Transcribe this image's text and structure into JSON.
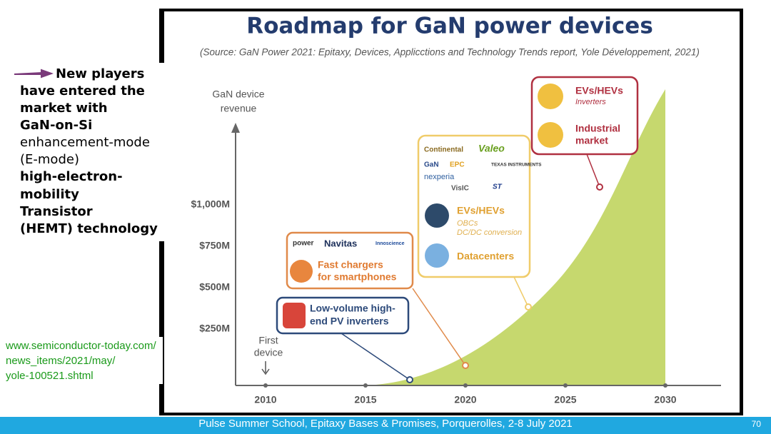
{
  "slide": {
    "title": "Roadmap for GaN power devices",
    "source": "(Source: GaN Power 2021: Epitaxy, Devices, Applicctions and Technology Trends report, Yole Développement, 2021)",
    "side_text": [
      "New players",
      "have entered the",
      "market with",
      "GaN-on-Si",
      "enhancement-mode",
      "(E-mode)",
      "high-electron-",
      "mobility",
      "Transistor",
      "(HEMT) technology"
    ],
    "link": [
      "www.semiconductor-today.com/",
      "news_items/2021/may/",
      "yole-100521.shtml"
    ],
    "chart": {
      "y_label": [
        "GaN device",
        "revenue"
      ],
      "yticks": [
        "$1,000M",
        "$750M",
        "$500M",
        "$250M"
      ],
      "xticks": [
        "2010",
        "2015",
        "2020",
        "2025",
        "2030"
      ],
      "first_device": [
        "First",
        "device"
      ],
      "callouts": [
        {
          "text": [
            "Low-volume high-",
            "end PV inverters"
          ]
        },
        {
          "logos": [
            "power",
            "Navitas",
            "Innoscience"
          ],
          "text": [
            "Fast chargers",
            "for smartphones"
          ]
        },
        {
          "logos": [
            "Continental",
            "Valeo",
            "GaN",
            "EPC",
            "TEXAS INSTRUMENTS",
            "nexperia",
            "VisIC",
            "ST"
          ],
          "items": [
            {
              "title": "EVs/HEVs",
              "sub": [
                "OBCs",
                "DC/DC conversion"
              ]
            },
            {
              "title": "Datacenters"
            }
          ]
        },
        {
          "items": [
            {
              "title": "EVs/HEVs",
              "sub": [
                "Inverters"
              ]
            },
            {
              "title": "Industrial",
              "title2": "market"
            }
          ]
        }
      ]
    },
    "footer": "Pulse Summer School, Epitaxy Bases & Promises, Porquerolles, 2-8 July 2021",
    "page_number": "70"
  }
}
